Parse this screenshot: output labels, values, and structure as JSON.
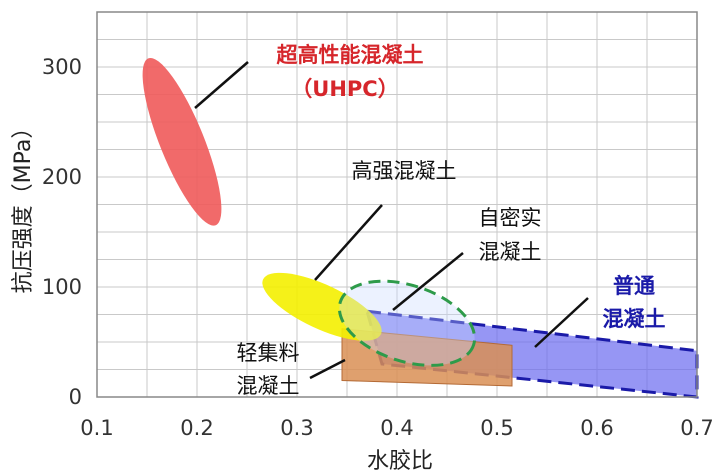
{
  "chart_data": {
    "type": "scatter",
    "title": "",
    "xlabel": "水胶比",
    "ylabel": "抗压强度（MPa）",
    "xlim": [
      0.1,
      0.7
    ],
    "ylim": [
      0,
      350
    ],
    "xticks": [
      "0.1",
      "0.2",
      "0.3",
      "0.4",
      "0.5",
      "0.6",
      "0.7"
    ],
    "yticks": [
      "0",
      "100",
      "200",
      "300"
    ],
    "grid": true,
    "regions": [
      {
        "name": "超高性能混凝土",
        "label_lines": [
          "超高性能混凝土",
          "（UHPC）"
        ],
        "color": "#f05a5a",
        "label_color": "#d6262b",
        "shape": "ellipse",
        "center": [
          0.185,
          235
        ],
        "extent": {
          "x_range": [
            0.14,
            0.225
          ],
          "y_range": [
            155,
            310
          ]
        }
      },
      {
        "name": "高强混凝土",
        "label_lines": [
          "高强混凝土"
        ],
        "color": "#f4f000",
        "label_color": "#111111",
        "shape": "ellipse",
        "center": [
          0.325,
          82
        ],
        "extent": {
          "x_range": [
            0.27,
            0.395
          ],
          "y_range": [
            55,
            110
          ]
        }
      },
      {
        "name": "自密实混凝土",
        "label_lines": [
          "自密实",
          "混凝土"
        ],
        "color": "#2e9b4a",
        "label_color": "#111111",
        "shape": "dashed-ellipse",
        "center": [
          0.42,
          67
        ],
        "extent": {
          "x_range": [
            0.34,
            0.48
          ],
          "y_range": [
            35,
            100
          ]
        }
      },
      {
        "name": "普通混凝土",
        "label_lines": [
          "普通",
          "混凝土"
        ],
        "color": "#6a6af0",
        "label_color": "#1a1aa8",
        "shape": "band",
        "extent": {
          "x_range": [
            0.37,
            0.7
          ],
          "y_range": [
            0,
            78
          ]
        }
      },
      {
        "name": "轻集料混凝土",
        "label_lines": [
          "轻集料",
          "混凝土"
        ],
        "color": "#d98f55",
        "label_color": "#111111",
        "shape": "band",
        "extent": {
          "x_range": [
            0.345,
            0.515
          ],
          "y_range": [
            10,
            62
          ]
        }
      }
    ]
  }
}
